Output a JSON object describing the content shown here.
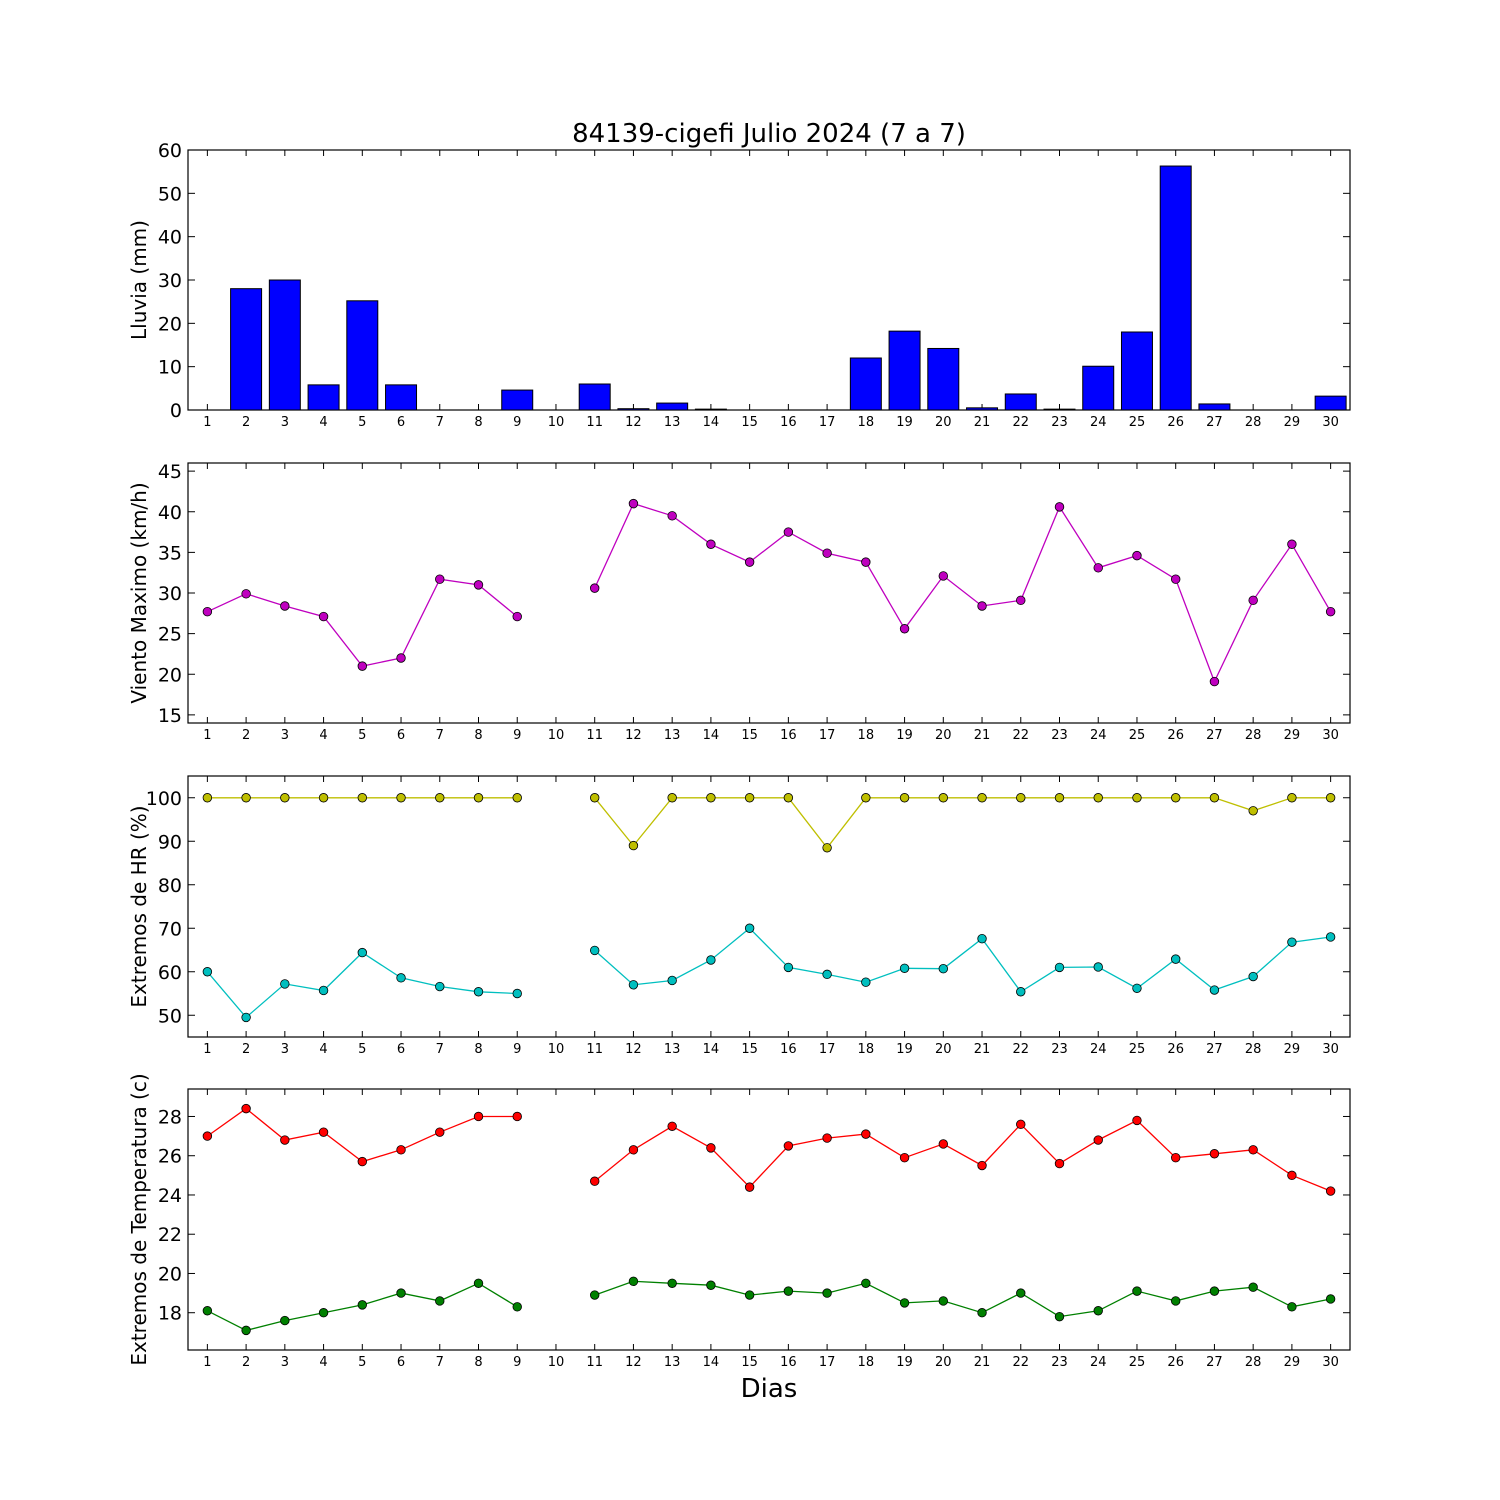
{
  "figure": {
    "title": "84139-cigefi Julio 2024  (7 a 7)",
    "xlabel": "Dias"
  },
  "chart_data": [
    {
      "type": "bar",
      "ylabel": "Lluvia (mm)",
      "ylim": [
        0,
        60
      ],
      "yticks": [
        0,
        10,
        20,
        30,
        40,
        50,
        60
      ],
      "categories": [
        1,
        2,
        3,
        4,
        5,
        6,
        7,
        8,
        9,
        10,
        11,
        12,
        13,
        14,
        15,
        16,
        17,
        18,
        19,
        20,
        21,
        22,
        23,
        24,
        25,
        26,
        27,
        28,
        29,
        30
      ],
      "series": [
        {
          "color": "#0000ff",
          "values": [
            0,
            28,
            30,
            5.8,
            25.2,
            5.8,
            0,
            0,
            4.6,
            null,
            6,
            0.3,
            1.6,
            0.2,
            0,
            0,
            0,
            12,
            18.2,
            14.2,
            0.5,
            3.7,
            0.2,
            10.1,
            18,
            56.3,
            1.4,
            0,
            0,
            3.2
          ]
        }
      ],
      "grid": false
    },
    {
      "type": "line",
      "ylabel": "Viento Maximo (km/h)",
      "ylim": [
        14,
        46
      ],
      "yticks": [
        15,
        20,
        25,
        30,
        35,
        40,
        45
      ],
      "x": [
        1,
        2,
        3,
        4,
        5,
        6,
        7,
        8,
        9,
        10,
        11,
        12,
        13,
        14,
        15,
        16,
        17,
        18,
        19,
        20,
        21,
        22,
        23,
        24,
        25,
        26,
        27,
        28,
        29,
        30
      ],
      "series": [
        {
          "color": "#bf00bf",
          "values": [
            27.7,
            29.9,
            28.4,
            27.1,
            21,
            22,
            31.7,
            31,
            27.1,
            null,
            30.6,
            41,
            39.5,
            36,
            33.8,
            37.5,
            34.9,
            33.8,
            25.6,
            32.1,
            28.4,
            29.1,
            40.6,
            33.1,
            34.6,
            31.7,
            19.1,
            29.1,
            36,
            27.7
          ]
        }
      ],
      "grid": false
    },
    {
      "type": "line",
      "ylabel": "Extremos de HR (%)",
      "ylim": [
        45,
        105
      ],
      "yticks": [
        50,
        60,
        70,
        80,
        90,
        100
      ],
      "x": [
        1,
        2,
        3,
        4,
        5,
        6,
        7,
        8,
        9,
        10,
        11,
        12,
        13,
        14,
        15,
        16,
        17,
        18,
        19,
        20,
        21,
        22,
        23,
        24,
        25,
        26,
        27,
        28,
        29,
        30
      ],
      "series": [
        {
          "color": "#bfbf00",
          "values": [
            100,
            100,
            100,
            100,
            100,
            100,
            100,
            100,
            100,
            null,
            100,
            89,
            100,
            100,
            100,
            100,
            88.5,
            100,
            100,
            100,
            100,
            100,
            100,
            100,
            100,
            100,
            100,
            97,
            100,
            100
          ]
        },
        {
          "color": "#00bfbf",
          "values": [
            60,
            49.5,
            57.2,
            55.7,
            64.4,
            58.6,
            56.6,
            55.4,
            55,
            null,
            64.9,
            57,
            58,
            62.7,
            70,
            61,
            59.4,
            57.6,
            60.8,
            60.7,
            67.6,
            55.4,
            61,
            61.1,
            56.2,
            62.9,
            55.8,
            58.9,
            66.8,
            68
          ]
        }
      ],
      "grid": false
    },
    {
      "type": "line",
      "ylabel": "Extremos de Temperatura (c)",
      "ylim": [
        16.1,
        29.4
      ],
      "yticks": [
        18,
        20,
        22,
        24,
        26,
        28
      ],
      "x": [
        1,
        2,
        3,
        4,
        5,
        6,
        7,
        8,
        9,
        10,
        11,
        12,
        13,
        14,
        15,
        16,
        17,
        18,
        19,
        20,
        21,
        22,
        23,
        24,
        25,
        26,
        27,
        28,
        29,
        30
      ],
      "series": [
        {
          "color": "#ff0000",
          "values": [
            27,
            28.4,
            26.8,
            27.2,
            25.7,
            26.3,
            27.2,
            28,
            28,
            null,
            24.7,
            26.3,
            27.5,
            26.4,
            24.4,
            26.5,
            26.9,
            27.1,
            25.9,
            26.6,
            25.5,
            27.6,
            25.6,
            26.8,
            27.8,
            25.9,
            26.1,
            26.3,
            25,
            24.2
          ]
        },
        {
          "color": "#008000",
          "values": [
            18.1,
            17.1,
            17.6,
            18,
            18.4,
            19,
            18.6,
            19.5,
            18.3,
            null,
            18.9,
            19.6,
            19.5,
            19.4,
            18.9,
            19.1,
            19,
            19.5,
            18.5,
            18.6,
            18,
            19,
            17.8,
            18.1,
            19.1,
            18.6,
            19.1,
            19.3,
            18.3,
            18.7
          ]
        }
      ],
      "grid": false
    }
  ]
}
